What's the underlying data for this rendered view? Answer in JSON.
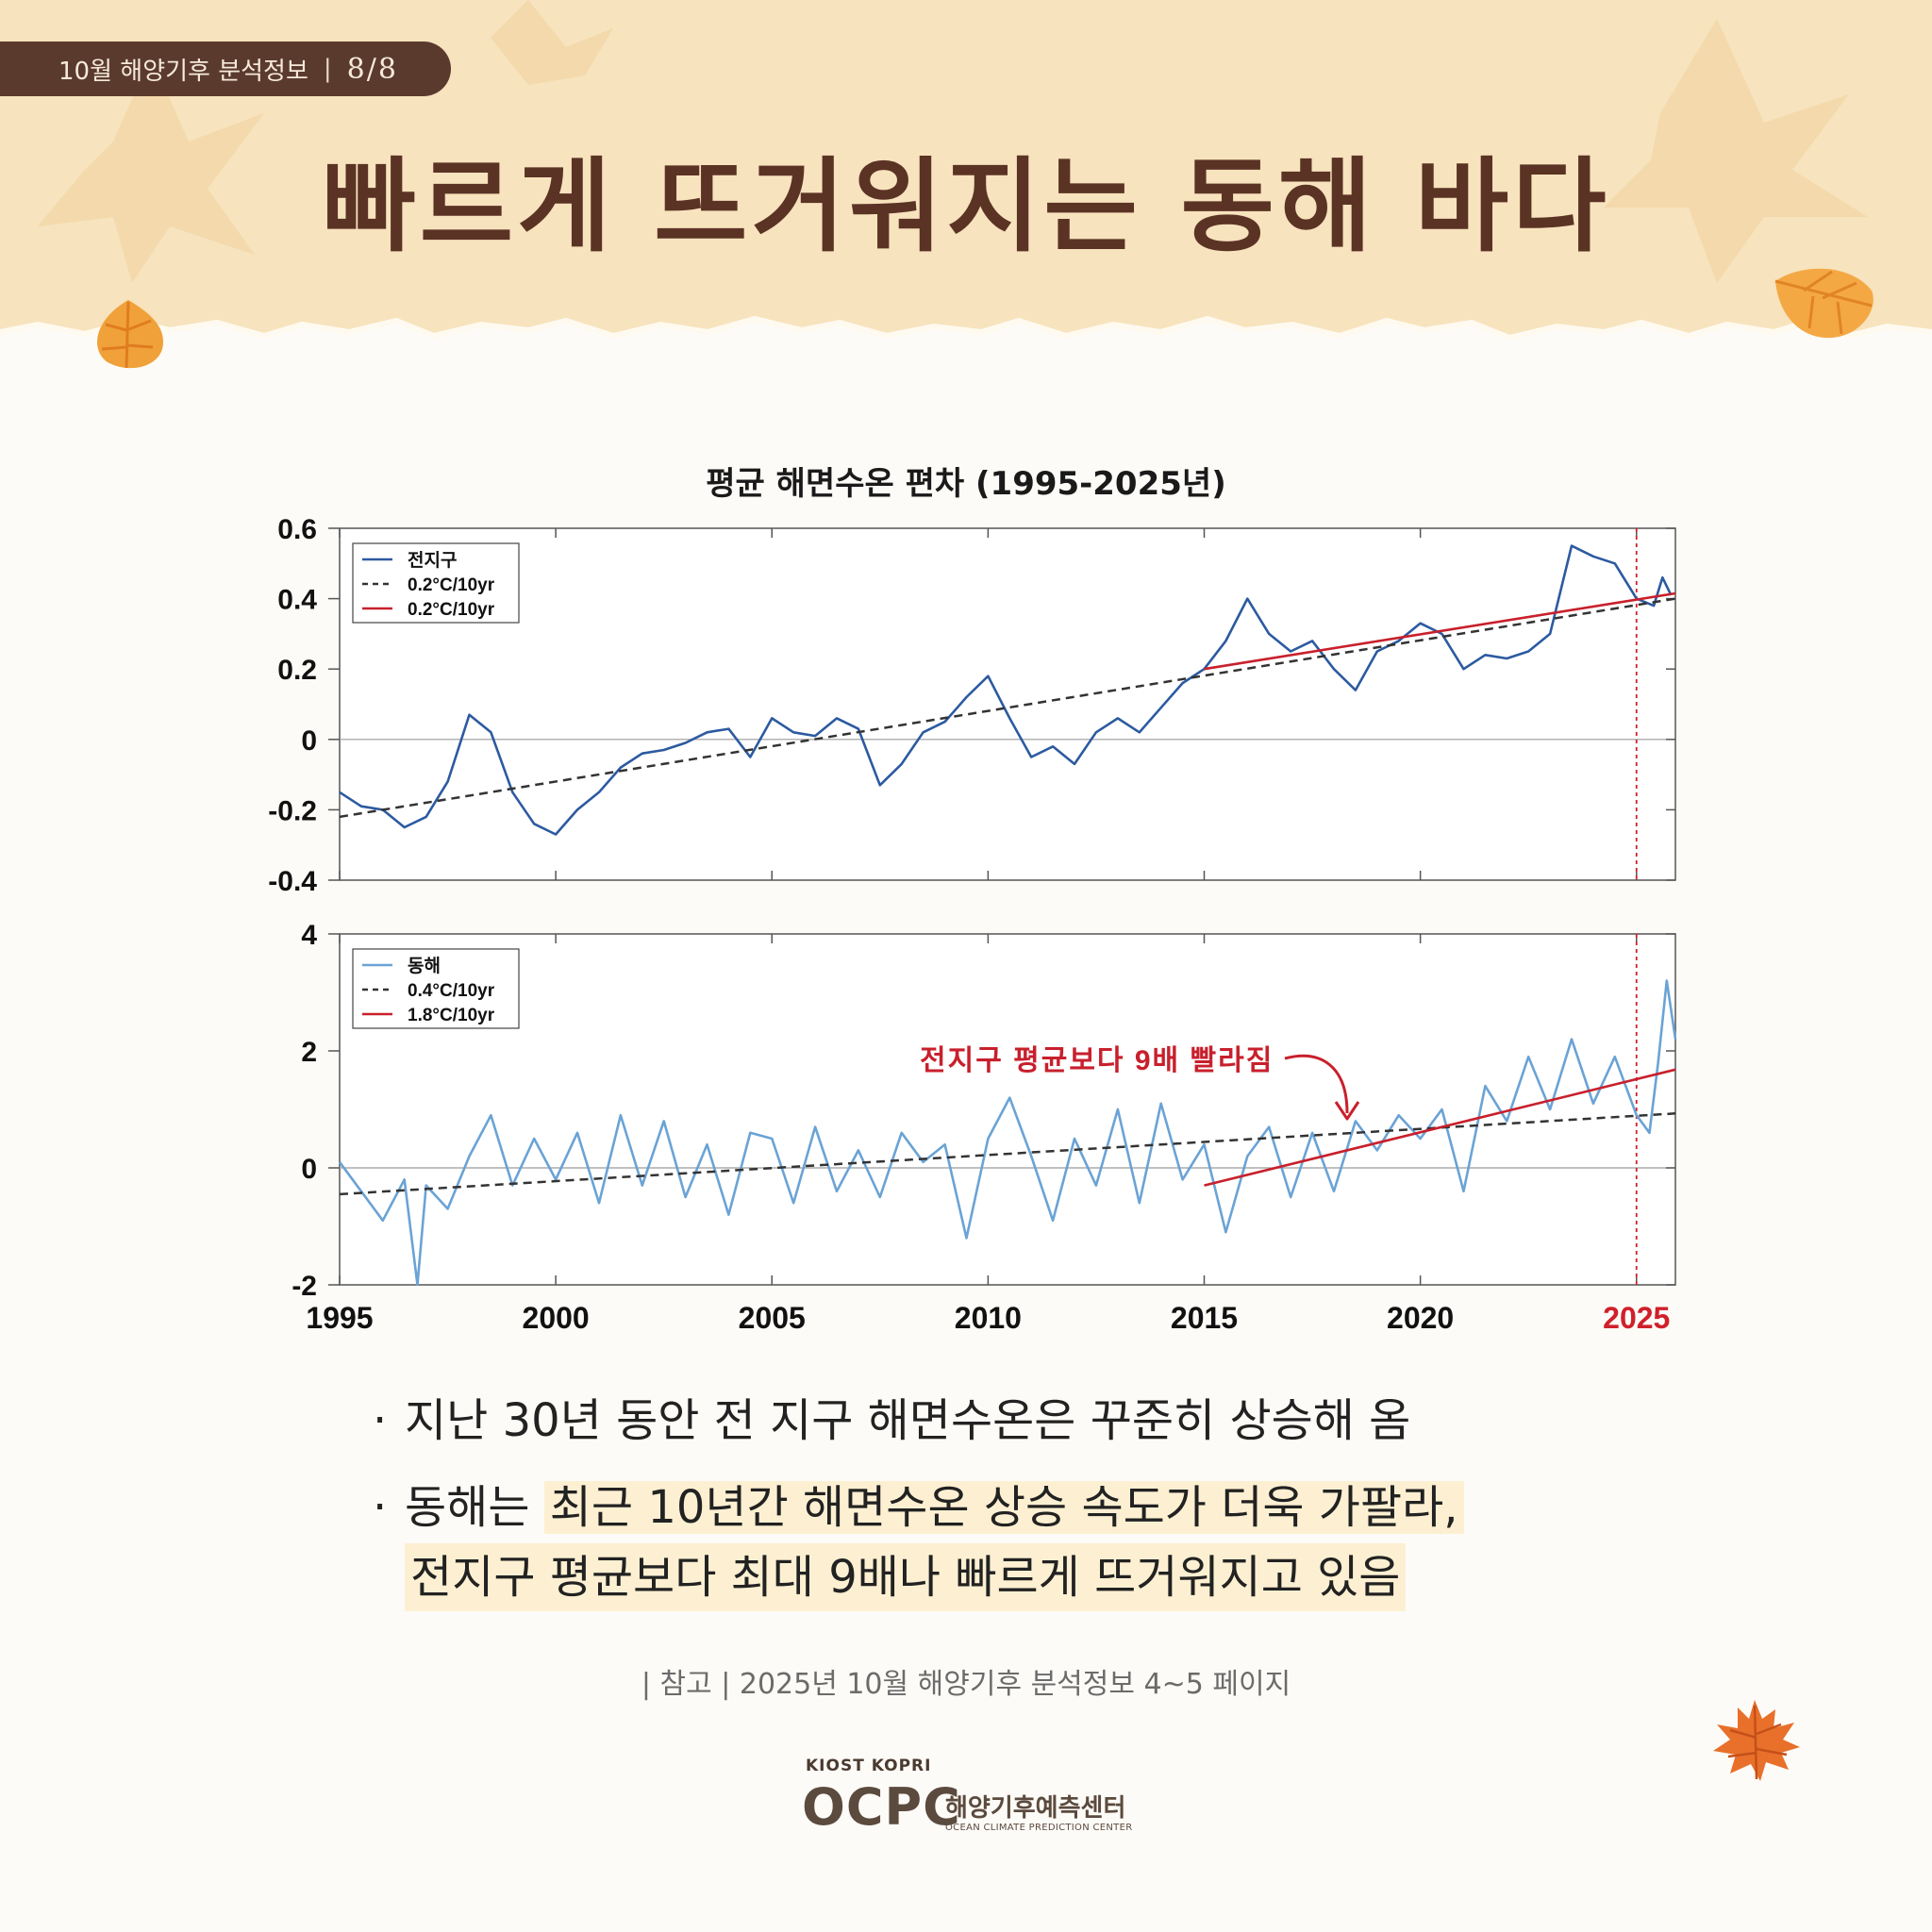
{
  "header": {
    "badge_text": "10월 해양기후 분석정보",
    "badge_sep": "|",
    "badge_page": "8/8",
    "title": "빠르게 뜨거워지는 동해 바다"
  },
  "chart_title": "평균 해면수온 편차 (1995-2025년)",
  "chart_data": [
    {
      "type": "line",
      "x_range": [
        1995,
        2025.9
      ],
      "ylim": [
        -0.4,
        0.6
      ],
      "yticks": [
        "0.6",
        "0.4",
        "0.2",
        "0",
        "-0.2",
        "-0.4"
      ],
      "legend_position": "top-left",
      "grid": false,
      "zero_line": true,
      "legend": [
        {
          "label": "전지구",
          "style": "solid",
          "color": "#2c5aa0"
        },
        {
          "label": "0.2°C/10yr",
          "style": "dashed",
          "color": "#333333"
        },
        {
          "label": "0.2°C/10yr",
          "style": "solid",
          "color": "#c8202c"
        }
      ],
      "series": [
        {
          "name": "전지구",
          "color": "#2c5aa0",
          "points": [
            [
              1995.0,
              -0.15
            ],
            [
              1995.5,
              -0.19
            ],
            [
              1996.0,
              -0.2
            ],
            [
              1996.5,
              -0.25
            ],
            [
              1997.0,
              -0.22
            ],
            [
              1997.5,
              -0.12
            ],
            [
              1998.0,
              0.07
            ],
            [
              1998.5,
              0.02
            ],
            [
              1999.0,
              -0.15
            ],
            [
              1999.5,
              -0.24
            ],
            [
              2000.0,
              -0.27
            ],
            [
              2000.5,
              -0.2
            ],
            [
              2001.0,
              -0.15
            ],
            [
              2001.5,
              -0.08
            ],
            [
              2002.0,
              -0.04
            ],
            [
              2002.5,
              -0.03
            ],
            [
              2003.0,
              -0.01
            ],
            [
              2003.5,
              0.02
            ],
            [
              2004.0,
              0.03
            ],
            [
              2004.5,
              -0.05
            ],
            [
              2005.0,
              0.06
            ],
            [
              2005.5,
              0.02
            ],
            [
              2006.0,
              0.01
            ],
            [
              2006.5,
              0.06
            ],
            [
              2007.0,
              0.03
            ],
            [
              2007.5,
              -0.13
            ],
            [
              2008.0,
              -0.07
            ],
            [
              2008.5,
              0.02
            ],
            [
              2009.0,
              0.05
            ],
            [
              2009.5,
              0.12
            ],
            [
              2010.0,
              0.18
            ],
            [
              2010.5,
              0.06
            ],
            [
              2011.0,
              -0.05
            ],
            [
              2011.5,
              -0.02
            ],
            [
              2012.0,
              -0.07
            ],
            [
              2012.5,
              0.02
            ],
            [
              2013.0,
              0.06
            ],
            [
              2013.5,
              0.02
            ],
            [
              2014.0,
              0.09
            ],
            [
              2014.5,
              0.16
            ],
            [
              2015.0,
              0.2
            ],
            [
              2015.5,
              0.28
            ],
            [
              2016.0,
              0.4
            ],
            [
              2016.5,
              0.3
            ],
            [
              2017.0,
              0.25
            ],
            [
              2017.5,
              0.28
            ],
            [
              2018.0,
              0.2
            ],
            [
              2018.5,
              0.14
            ],
            [
              2019.0,
              0.25
            ],
            [
              2019.5,
              0.28
            ],
            [
              2020.0,
              0.33
            ],
            [
              2020.5,
              0.3
            ],
            [
              2021.0,
              0.2
            ],
            [
              2021.5,
              0.24
            ],
            [
              2022.0,
              0.23
            ],
            [
              2022.5,
              0.25
            ],
            [
              2023.0,
              0.3
            ],
            [
              2023.5,
              0.55
            ],
            [
              2024.0,
              0.52
            ],
            [
              2024.5,
              0.5
            ],
            [
              2025.0,
              0.4
            ],
            [
              2025.4,
              0.38
            ],
            [
              2025.6,
              0.46
            ],
            [
              2025.8,
              0.41
            ]
          ]
        },
        {
          "name": "0.2°C/10yr",
          "style": "dashed",
          "color": "#333333",
          "points": [
            [
              1995.0,
              -0.22
            ],
            [
              2025.9,
              0.4
            ]
          ]
        },
        {
          "name": "0.2°C/10yr",
          "style": "solid",
          "color": "#c8202c",
          "points": [
            [
              2015.0,
              0.2
            ],
            [
              2025.9,
              0.415
            ]
          ]
        }
      ]
    },
    {
      "type": "line",
      "x_range": [
        1995,
        2025.9
      ],
      "ylim": [
        -2,
        4
      ],
      "yticks": [
        "4",
        "2",
        "0",
        "-2"
      ],
      "xticks": [
        "1995",
        "2000",
        "2005",
        "2010",
        "2015",
        "2020",
        "2025"
      ],
      "highlight_year": "2025",
      "legend_position": "top-left",
      "grid": false,
      "zero_line": true,
      "legend": [
        {
          "label": "동해",
          "style": "solid",
          "color": "#6aa3d5"
        },
        {
          "label": "0.4°C/10yr",
          "style": "dashed",
          "color": "#333333"
        },
        {
          "label": "1.8°C/10yr",
          "style": "solid",
          "color": "#c8202c"
        }
      ],
      "annotation": "전지구 평균보다 9배 빨라짐",
      "series": [
        {
          "name": "동해",
          "color": "#6aa3d5",
          "points": [
            [
              1995.0,
              0.1
            ],
            [
              1995.5,
              -0.4
            ],
            [
              1996.0,
              -0.9
            ],
            [
              1996.5,
              -0.2
            ],
            [
              1996.8,
              -2.0
            ],
            [
              1997.0,
              -0.3
            ],
            [
              1997.5,
              -0.7
            ],
            [
              1998.0,
              0.2
            ],
            [
              1998.5,
              0.9
            ],
            [
              1999.0,
              -0.3
            ],
            [
              1999.5,
              0.5
            ],
            [
              2000.0,
              -0.2
            ],
            [
              2000.5,
              0.6
            ],
            [
              2001.0,
              -0.6
            ],
            [
              2001.5,
              0.9
            ],
            [
              2002.0,
              -0.3
            ],
            [
              2002.5,
              0.8
            ],
            [
              2003.0,
              -0.5
            ],
            [
              2003.5,
              0.4
            ],
            [
              2004.0,
              -0.8
            ],
            [
              2004.5,
              0.6
            ],
            [
              2005.0,
              0.5
            ],
            [
              2005.5,
              -0.6
            ],
            [
              2006.0,
              0.7
            ],
            [
              2006.5,
              -0.4
            ],
            [
              2007.0,
              0.3
            ],
            [
              2007.5,
              -0.5
            ],
            [
              2008.0,
              0.6
            ],
            [
              2008.5,
              0.1
            ],
            [
              2009.0,
              0.4
            ],
            [
              2009.5,
              -1.2
            ],
            [
              2010.0,
              0.5
            ],
            [
              2010.5,
              1.2
            ],
            [
              2011.0,
              0.2
            ],
            [
              2011.5,
              -0.9
            ],
            [
              2012.0,
              0.5
            ],
            [
              2012.5,
              -0.3
            ],
            [
              2013.0,
              1.0
            ],
            [
              2013.5,
              -0.6
            ],
            [
              2014.0,
              1.1
            ],
            [
              2014.5,
              -0.2
            ],
            [
              2015.0,
              0.4
            ],
            [
              2015.5,
              -1.1
            ],
            [
              2016.0,
              0.2
            ],
            [
              2016.5,
              0.7
            ],
            [
              2017.0,
              -0.5
            ],
            [
              2017.5,
              0.6
            ],
            [
              2018.0,
              -0.4
            ],
            [
              2018.5,
              0.8
            ],
            [
              2019.0,
              0.3
            ],
            [
              2019.5,
              0.9
            ],
            [
              2020.0,
              0.5
            ],
            [
              2020.5,
              1.0
            ],
            [
              2021.0,
              -0.4
            ],
            [
              2021.5,
              1.4
            ],
            [
              2022.0,
              0.8
            ],
            [
              2022.5,
              1.9
            ],
            [
              2023.0,
              1.0
            ],
            [
              2023.5,
              2.2
            ],
            [
              2024.0,
              1.1
            ],
            [
              2024.5,
              1.9
            ],
            [
              2025.0,
              0.9
            ],
            [
              2025.3,
              0.6
            ],
            [
              2025.5,
              1.8
            ],
            [
              2025.7,
              3.2
            ],
            [
              2025.9,
              2.2
            ]
          ]
        },
        {
          "name": "0.4°C/10yr",
          "style": "dashed",
          "color": "#333333",
          "points": [
            [
              1995.0,
              -0.45
            ],
            [
              2025.9,
              0.93
            ]
          ]
        },
        {
          "name": "1.8°C/10yr",
          "style": "solid",
          "color": "#c8202c",
          "points": [
            [
              2015.0,
              -0.3
            ],
            [
              2025.9,
              1.68
            ]
          ]
        }
      ]
    }
  ],
  "bullets": [
    {
      "dot": "·",
      "text": "지난 30년 동안 전 지구 해면수온은 꾸준히 상승해 옴"
    },
    {
      "dot": "·",
      "lead": "동해는 ",
      "hl1": "최근 10년간 해면수온 상승 속도가 더욱 가팔라,",
      "hl2": "전지구 평균보다 최대 9배나 빠르게 뜨거워지고 있음"
    }
  ],
  "reference": "| 참고 |  2025년 10월 해양기후 분석정보 4~5 페이지",
  "logo": {
    "top": "KIOST KOPRI",
    "big": "OCPC",
    "kr": "해양기후예측센터",
    "en": "OCEAN CLIMATE PREDICTION CENTER"
  }
}
